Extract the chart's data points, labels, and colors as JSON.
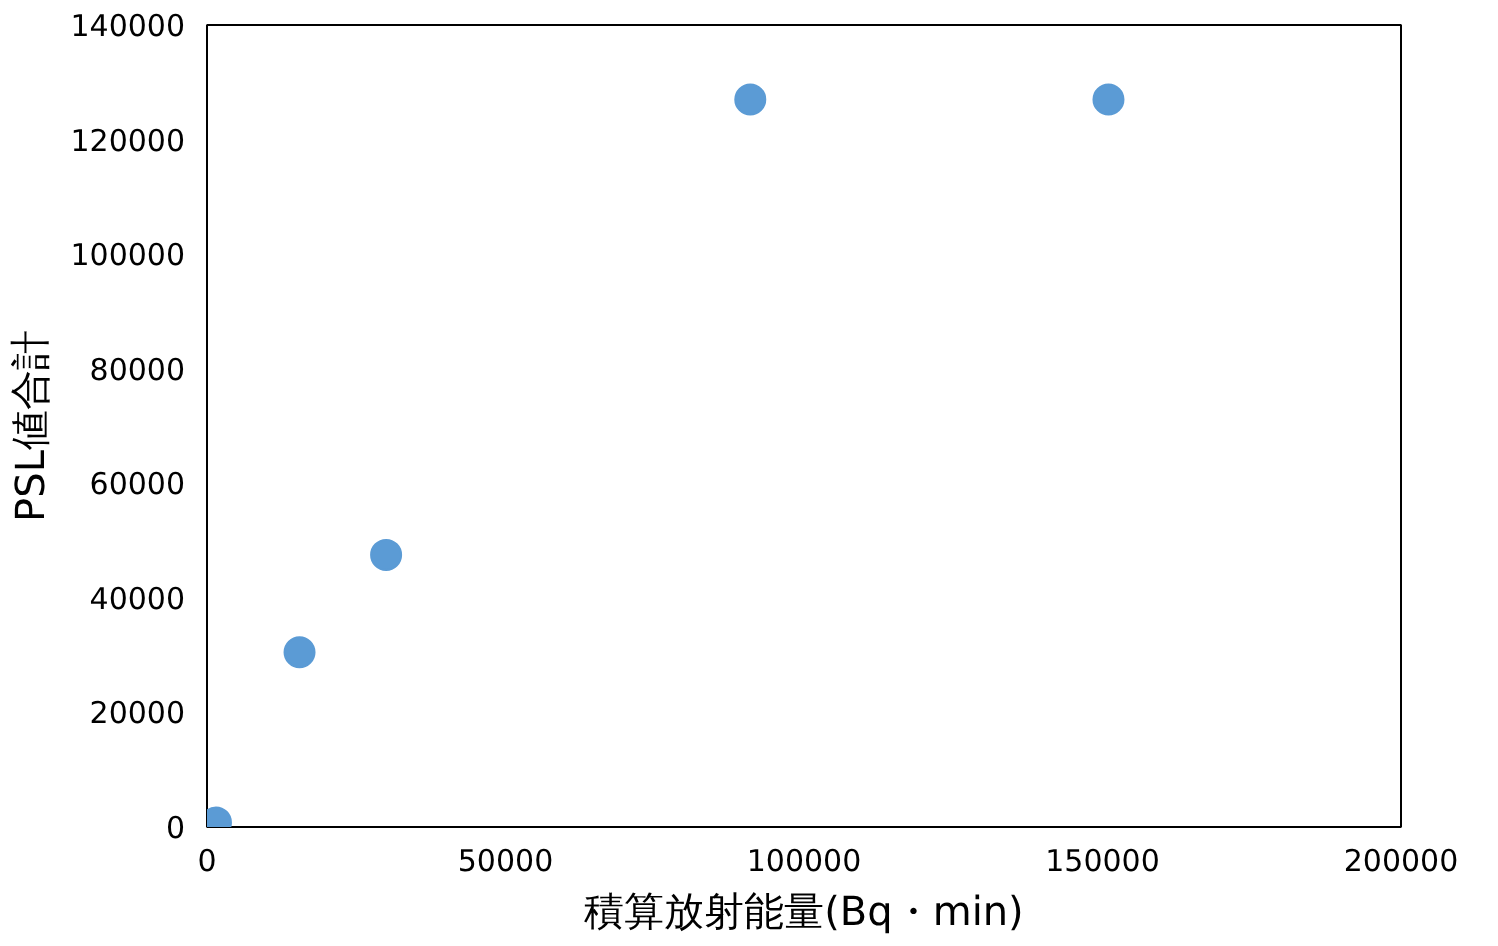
{
  "chart_data": {
    "type": "scatter",
    "xlabel": "積算放射能量(Bq・min)",
    "ylabel": "PSL値合計",
    "x": [
      1500,
      15500,
      30000,
      91000,
      151000
    ],
    "series": [
      {
        "color": "#5b9bd5",
        "values": [
          800,
          30500,
          47500,
          127000,
          127000
        ]
      }
    ],
    "xlim": [
      0,
      200000
    ],
    "xticks": [
      0,
      50000,
      100000,
      150000,
      200000
    ],
    "ylim": [
      0,
      140000
    ],
    "yticks": [
      0,
      20000,
      40000,
      60000,
      80000,
      100000,
      120000,
      140000
    ],
    "grid": false,
    "marker": "circle"
  }
}
